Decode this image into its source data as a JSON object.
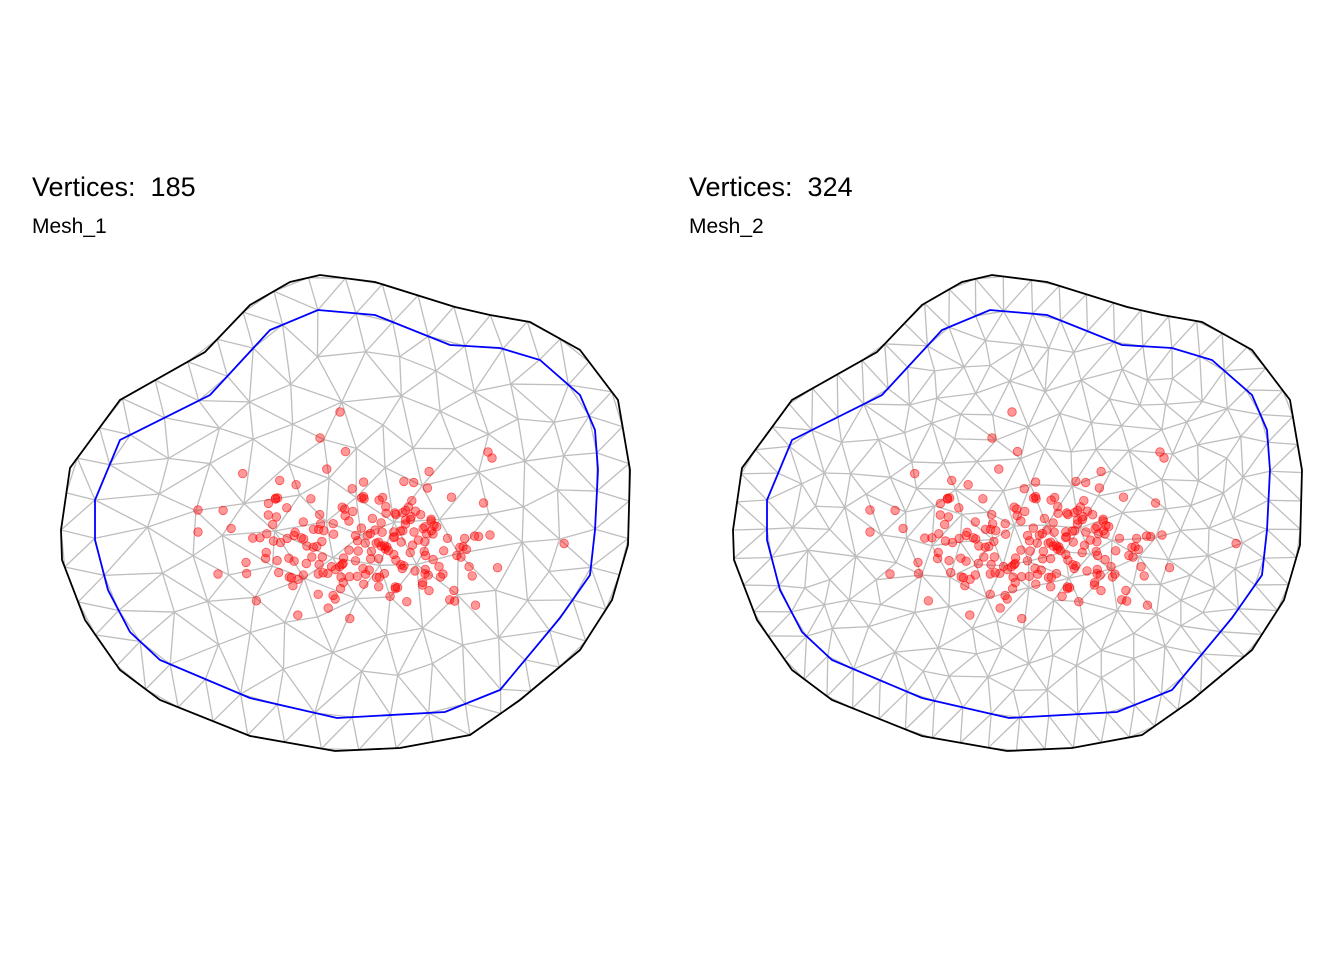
{
  "panels": [
    {
      "title": "Vertices:  185",
      "subtitle": "Mesh_1",
      "vertex_count": 185
    },
    {
      "title": "Vertices:  324",
      "subtitle": "Mesh_2",
      "vertex_count": 324
    }
  ],
  "colors": {
    "outer_boundary": "#000000",
    "inner_boundary": "#0000ff",
    "mesh_edges": "#bebebe",
    "points": "#ff0000"
  }
}
